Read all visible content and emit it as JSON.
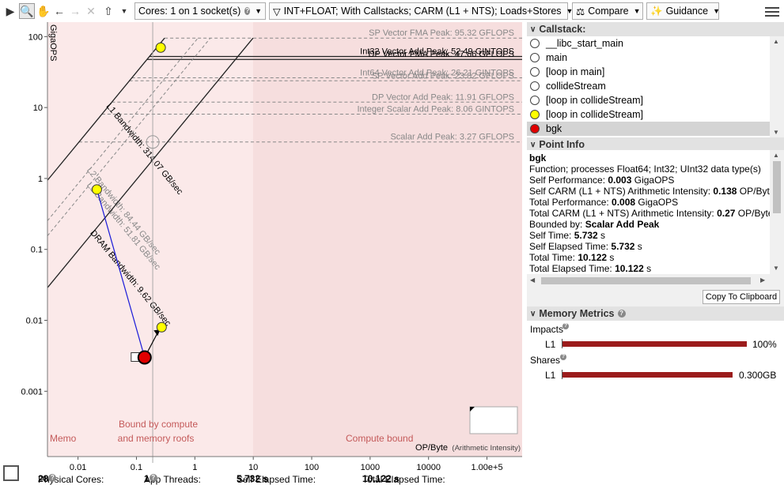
{
  "toolbar": {
    "cores_label": "Cores:",
    "cores_value": "1 on 1 socket(s)",
    "filter_label": "INT+FLOAT; With Callstacks; CARM (L1 + NTS); Loads+Stores",
    "compare_label": "Compare",
    "guidance_label": "Guidance"
  },
  "chart": {
    "ylabel": "GigaOPS",
    "xlabel": "OP/Byte",
    "xlabel_suffix": "(Arithmetic Intensity)",
    "regions": {
      "memory": "Memo",
      "both_line1": "Bound by compute",
      "both_line2": "and memory roofs",
      "compute": "Compute bound"
    }
  },
  "chart_data": {
    "type": "scatter",
    "title": "",
    "xlabel": "OP/Byte (Arithmetic Intensity)",
    "ylabel": "GigaOPS",
    "x_scale": "log",
    "y_scale": "log",
    "xlim": [
      0.003,
      400000
    ],
    "ylim": [
      0.00012,
      160
    ],
    "x_ticks": [
      "0.01",
      "0.1",
      "1",
      "10",
      "100",
      "1000",
      "10000",
      "1.00e+5"
    ],
    "y_ticks": [
      "100",
      "10",
      "1",
      "0.1",
      "0.01",
      "0.001"
    ],
    "compute_roofs": [
      {
        "label": "SP Vector FMA Peak: 95.32 GFLOPS",
        "value": 95.32,
        "style": "dashed"
      },
      {
        "label": "Int32 Vector Add Peak: 52.49 GINTOPS",
        "value": 52.49,
        "style": "solid"
      },
      {
        "label": "DP Vector FMA Peak: 47.66 GFLOPS",
        "value": 47.66,
        "style": "solid"
      },
      {
        "label": "Int64 Vector Add Peak: 26.21 GINTOPS",
        "value": 26.21,
        "style": "dashed"
      },
      {
        "label": "SP Vector Add Peak: 23.82 GFLOPS",
        "value": 23.82,
        "style": "dashed"
      },
      {
        "label": "DP Vector Add Peak: 11.91 GFLOPS",
        "value": 11.91,
        "style": "dashed"
      },
      {
        "label": "Integer Scalar Add Peak: 8.06 GINTOPS",
        "value": 8.06,
        "style": "dashed"
      },
      {
        "label": "Scalar Add Peak: 3.27 GFLOPS",
        "value": 3.27,
        "style": "dashed"
      }
    ],
    "memory_roofs": [
      {
        "label": "L1 Bandwidth: 314.07 GB/sec",
        "value": 314.07,
        "style": "solid"
      },
      {
        "label": "L2 Bandwidth: 84.44 GB/sec",
        "value": 84.44,
        "style": "dashed"
      },
      {
        "label": "L3 Bandwidth: 51.81 GB/sec",
        "value": 51.81,
        "style": "dashed"
      },
      {
        "label": "DRAM Bandwidth: 9.62 GB/sec",
        "value": 9.62,
        "style": "solid"
      }
    ],
    "points": [
      {
        "name": "bgk",
        "x": 0.138,
        "y": 0.003,
        "color": "#e00000"
      },
      {
        "name": "bgk total",
        "x": 0.27,
        "y": 0.008,
        "color": "#ffff00"
      },
      {
        "name": "upper",
        "x": 0.26,
        "y": 70,
        "color": "#ffff00"
      },
      {
        "name": "mid",
        "x": 0.021,
        "y": 0.7,
        "color": "#ffff00"
      }
    ]
  },
  "callstack": {
    "title": "Callstack:",
    "items": [
      {
        "label": "__libc_start_main",
        "color": "#ffffff",
        "selected": false
      },
      {
        "label": "main",
        "color": "#ffffff",
        "selected": false
      },
      {
        "label": "[loop in main]",
        "color": "#ffffff",
        "selected": false
      },
      {
        "label": "collideStream",
        "color": "#ffffff",
        "selected": false
      },
      {
        "label": "[loop in collideStream]",
        "color": "#ffffff",
        "selected": false
      },
      {
        "label": "[loop in collideStream]",
        "color": "#ffff00",
        "selected": false
      },
      {
        "label": "bgk",
        "color": "#e00000",
        "selected": true
      }
    ]
  },
  "point_info": {
    "title": "Point Info",
    "name": "bgk",
    "function": "Function; processes Float64; Int32; UInt32 data type(s)",
    "self_perf_label": "Self Performance: ",
    "self_perf_value": "0.003",
    "self_perf_unit": " GigaOPS",
    "self_carm_label": "Self CARM (L1 + NTS) Arithmetic Intensity: ",
    "self_carm_value": "0.138",
    "self_carm_unit": " OP/Byte",
    "total_perf_label": "Total Performance: ",
    "total_perf_value": "0.008",
    "total_perf_unit": " GigaOPS",
    "total_carm_label": "Total CARM (L1 + NTS) Arithmetic Intensity: ",
    "total_carm_value": "0.27",
    "total_carm_unit": " OP/Byte",
    "bounded_label": "Bounded by: ",
    "bounded_value": "Scalar Add Peak",
    "self_time_label": "Self Time: ",
    "self_time_value": "5.732",
    "self_time_unit": " s",
    "self_elapsed_label": "Self Elapsed Time: ",
    "self_elapsed_value": "5.732",
    "self_elapsed_unit": " s",
    "total_time_label": "Total Time: ",
    "total_time_value": "10.122",
    "total_time_unit": " s",
    "total_elapsed_label": "Total Elapsed Time: ",
    "total_elapsed_value": "10.122",
    "total_elapsed_unit": " s"
  },
  "copy_button": "Copy To Clipboard",
  "memory_metrics": {
    "title": "Memory Metrics",
    "impacts_label": "Impacts",
    "impacts_key": "L1",
    "impacts_value": "100%",
    "impacts_fraction": 1.0,
    "shares_label": "Shares",
    "shares_key": "L1",
    "shares_value": "0.300GB",
    "shares_fraction": 1.0
  },
  "status": {
    "physical_cores_label": "Physical Cores:",
    "physical_cores_value": "28",
    "app_threads_label": "App Threads:",
    "app_threads_value": "1",
    "self_elapsed_label": "Self Elapsed Time:",
    "self_elapsed_value": "5.732 s",
    "total_elapsed_label": "Total Elapsed Time:",
    "total_elapsed_value": "10.122 s"
  }
}
